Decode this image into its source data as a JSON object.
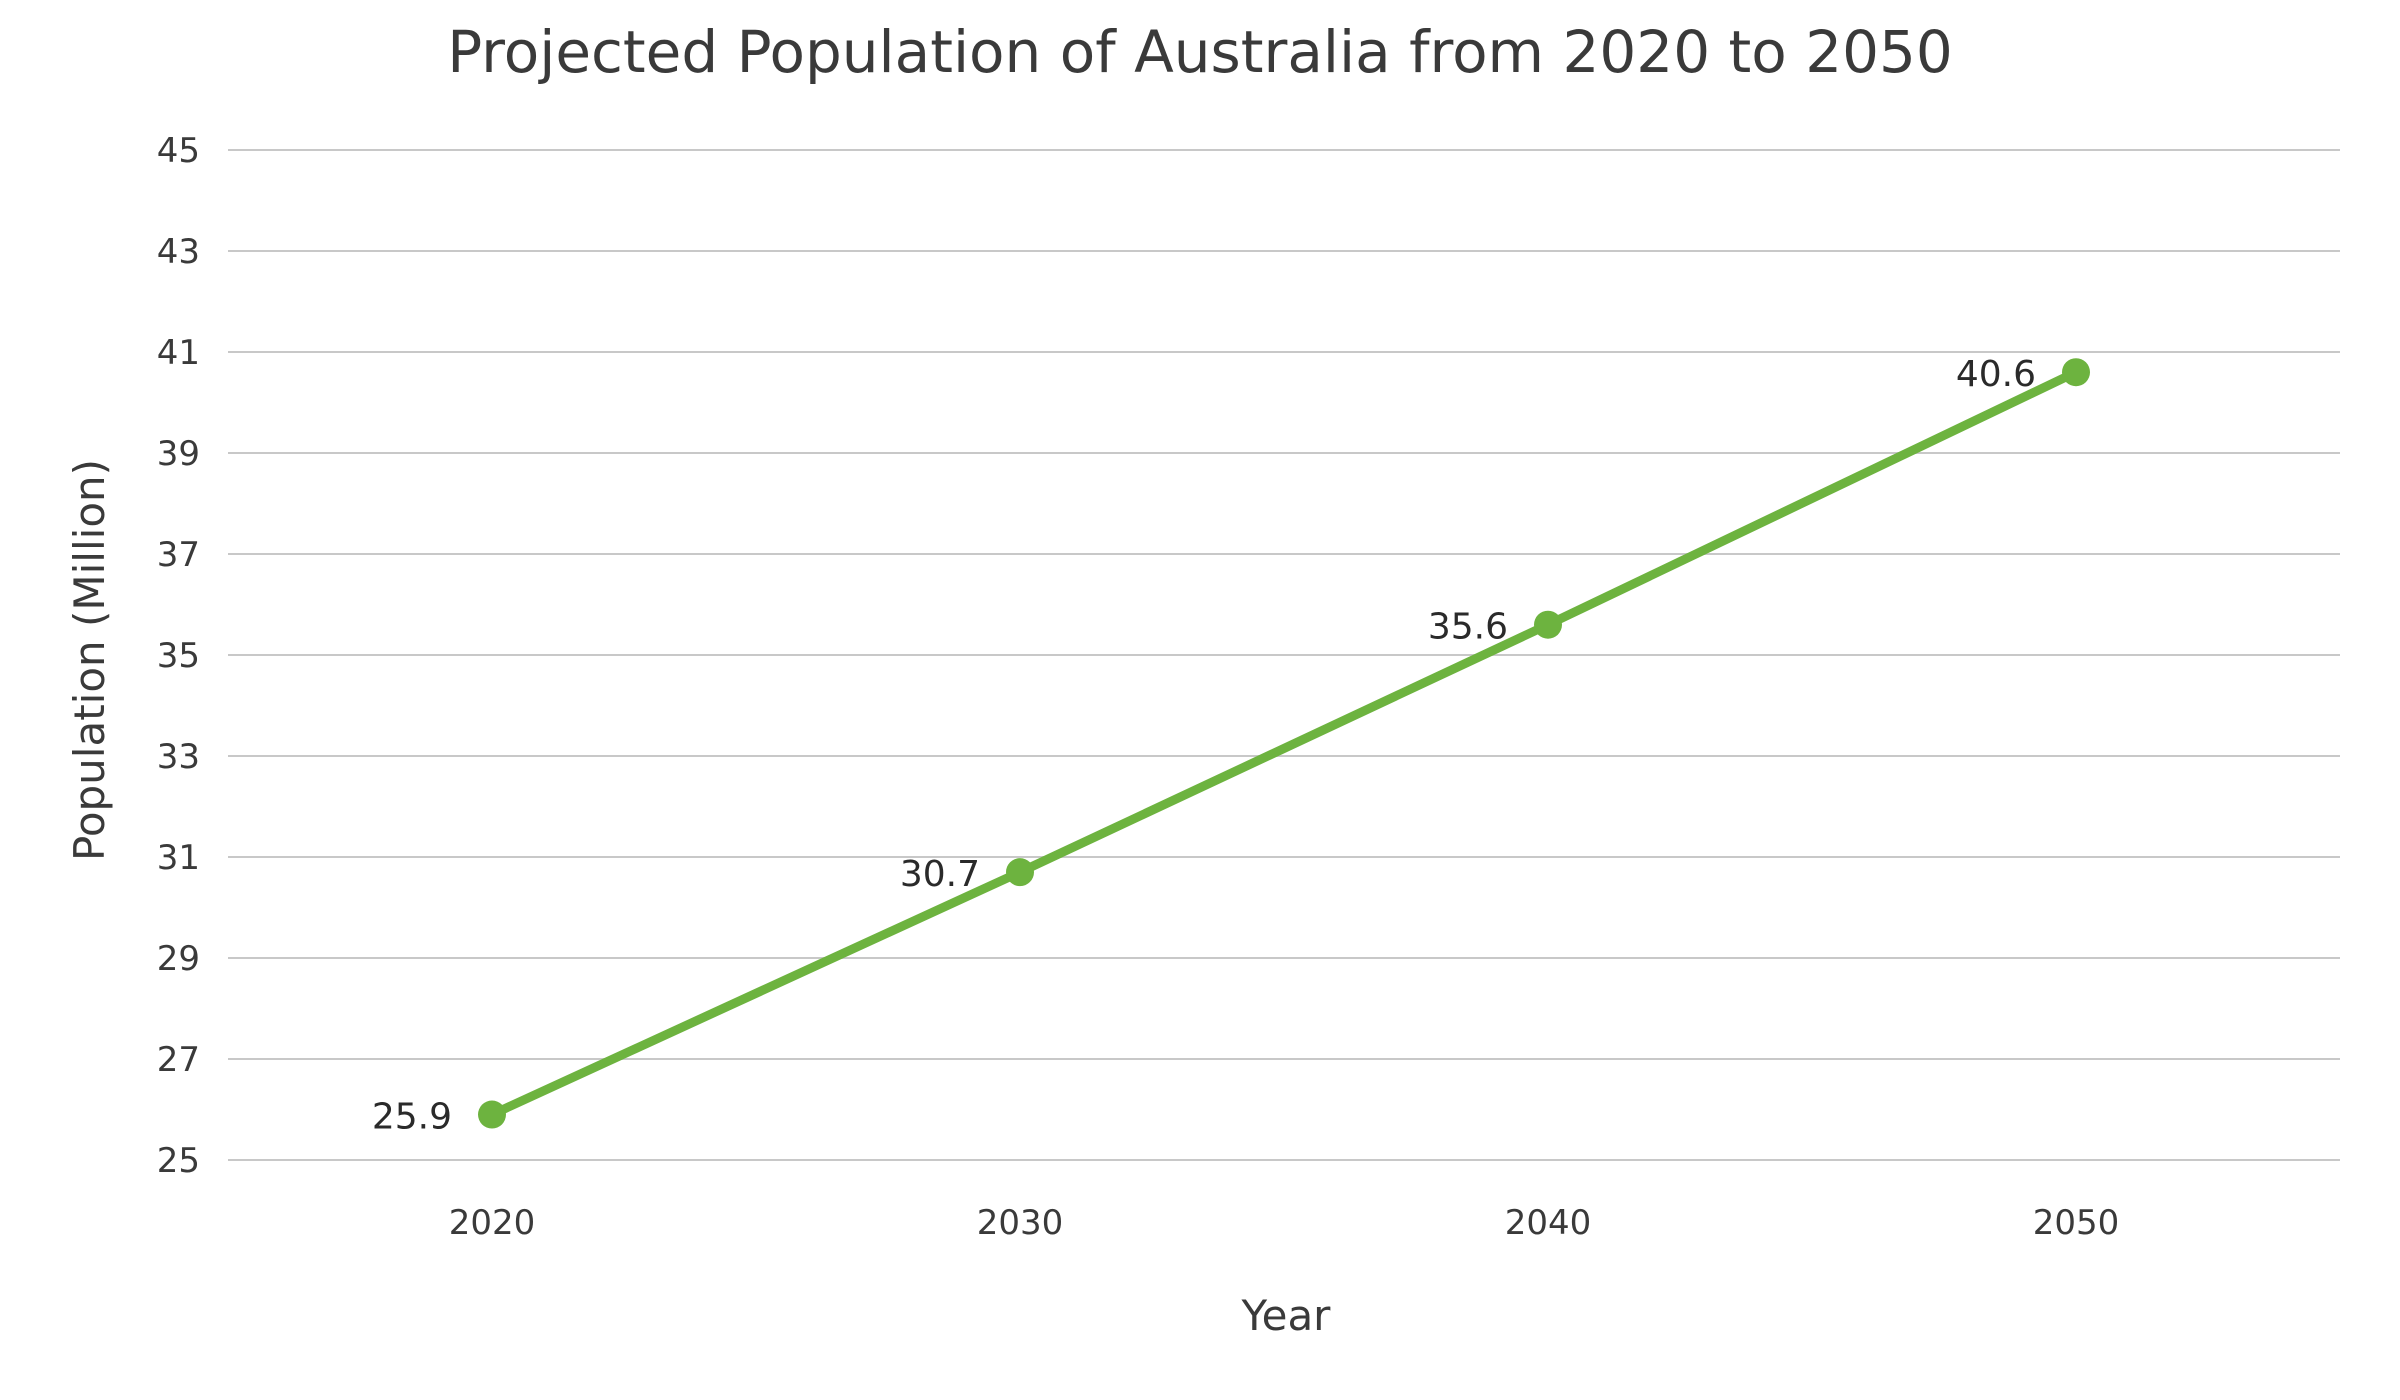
{
  "chart_data": {
    "type": "line",
    "title": "Projected Population of Australia from 2020 to 2050",
    "xlabel": "Year",
    "ylabel": "Population (Million)",
    "categories": [
      "2020",
      "2030",
      "2040",
      "2050"
    ],
    "series": [
      {
        "values": [
          25.9,
          30.7,
          35.6,
          40.6
        ],
        "color": "#6db33f"
      }
    ],
    "data_labels": [
      "25.9",
      "30.7",
      "35.6",
      "40.6"
    ],
    "yticks": [
      "25",
      "27",
      "29",
      "31",
      "33",
      "35",
      "37",
      "39",
      "41",
      "43",
      "45"
    ],
    "ylim": [
      25,
      45
    ],
    "grid": true,
    "legend": "none"
  }
}
